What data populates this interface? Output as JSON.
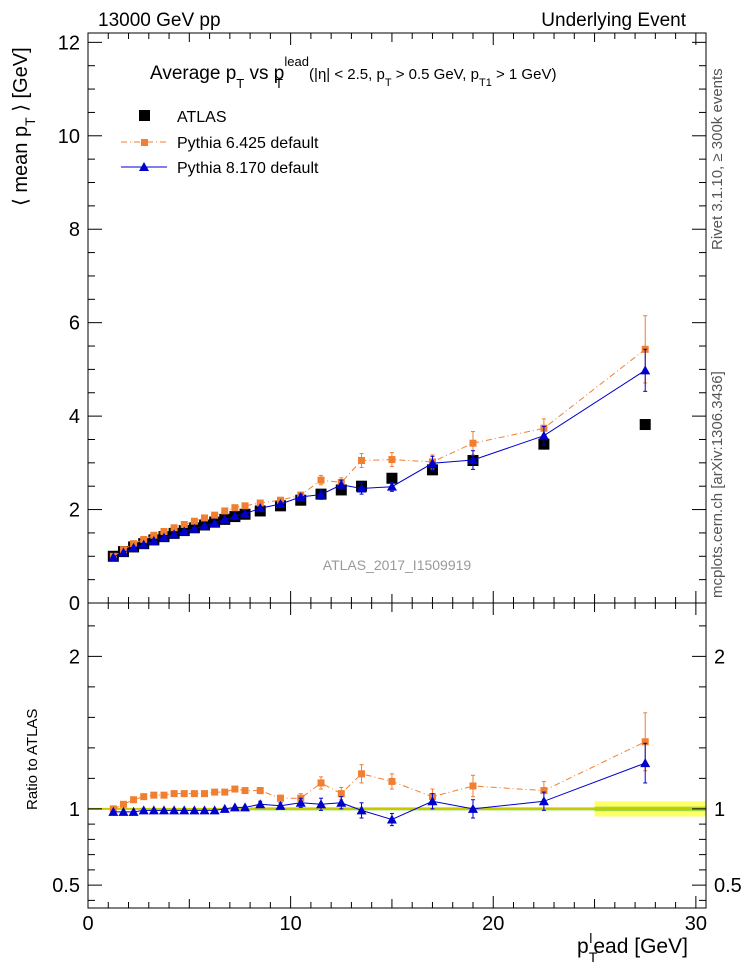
{
  "header": {
    "left": "13000 GeV pp",
    "right": "Underlying Event"
  },
  "side_labels": {
    "rivet": "Rivet 3.1.10, ≥ 300k events",
    "mcplots": "mcplots.cern.ch [arXiv:1306.3436]"
  },
  "watermark": "ATLAS_2017_I1509919",
  "colors": {
    "atlas": "#000000",
    "pythia6": "#f07f32",
    "pythia8": "#0000cc",
    "band_outer": "#ffff66",
    "band_inner": "#99dd44"
  },
  "chart_data": [
    {
      "type": "scatter",
      "title": "Average p_T vs p_T^lead (|η| < 2.5, p_T > 0.5 GeV, p_T1 > 1 GeV)",
      "title_parts": {
        "a": "Average p",
        "a_sub": "T",
        "b": " vs p",
        "b_sup": "lead",
        "b_sub": "T",
        "c": " (|η| < 2.5, p",
        "c_sub": "T",
        "d": " > 0.5 GeV, p",
        "d_sub": "T1",
        "e": " > 1 GeV)"
      },
      "ylabel": "⟨ mean p_T ⟩ [GeV]",
      "ylabel_parts": {
        "a": "⟨ mean p",
        "sub": "T",
        "b": " ⟩ [GeV]"
      },
      "xlim": [
        0,
        30.5
      ],
      "ylim": [
        0,
        12.2
      ],
      "yticks": [
        0,
        2,
        4,
        6,
        8,
        10,
        12
      ],
      "series": [
        {
          "name": "ATLAS",
          "marker": "square",
          "x": [
            1.25,
            1.75,
            2.25,
            2.75,
            3.25,
            3.75,
            4.25,
            4.75,
            5.25,
            5.75,
            6.25,
            6.75,
            7.25,
            7.75,
            8.5,
            9.5,
            10.5,
            11.5,
            12.5,
            13.5,
            15.0,
            17.0,
            19.0,
            22.5,
            27.5
          ],
          "y": [
            1.0,
            1.1,
            1.2,
            1.27,
            1.35,
            1.42,
            1.49,
            1.55,
            1.61,
            1.67,
            1.73,
            1.79,
            1.85,
            1.9,
            1.97,
            2.08,
            2.2,
            2.33,
            2.42,
            2.5,
            2.67,
            2.85,
            3.05,
            3.4,
            3.82
          ]
        },
        {
          "name": "Pythia 6.425 default",
          "marker": "square-small",
          "x": [
            1.25,
            1.75,
            2.25,
            2.75,
            3.25,
            3.75,
            4.25,
            4.75,
            5.25,
            5.75,
            6.25,
            6.75,
            7.25,
            7.75,
            8.5,
            9.5,
            10.5,
            11.5,
            12.5,
            13.5,
            15.0,
            17.0,
            19.0,
            22.5,
            27.5
          ],
          "y": [
            1.0,
            1.14,
            1.27,
            1.36,
            1.45,
            1.53,
            1.61,
            1.68,
            1.75,
            1.82,
            1.88,
            1.97,
            2.04,
            2.08,
            2.14,
            2.2,
            2.31,
            2.63,
            2.58,
            3.05,
            3.07,
            3.02,
            3.42,
            3.74,
            5.43
          ],
          "err": [
            0.01,
            0.01,
            0.01,
            0.01,
            0.01,
            0.01,
            0.01,
            0.01,
            0.01,
            0.01,
            0.01,
            0.02,
            0.02,
            0.02,
            0.03,
            0.04,
            0.06,
            0.1,
            0.1,
            0.15,
            0.15,
            0.15,
            0.25,
            0.2,
            0.72
          ]
        },
        {
          "name": "Pythia 8.170 default",
          "marker": "triangle",
          "x": [
            1.25,
            1.75,
            2.25,
            2.75,
            3.25,
            3.75,
            4.25,
            4.75,
            5.25,
            5.75,
            6.25,
            6.75,
            7.25,
            7.75,
            8.5,
            9.5,
            10.5,
            11.5,
            12.5,
            13.5,
            15.0,
            17.0,
            19.0,
            22.5,
            27.5
          ],
          "y": [
            0.98,
            1.08,
            1.18,
            1.25,
            1.33,
            1.4,
            1.47,
            1.53,
            1.59,
            1.65,
            1.71,
            1.79,
            1.86,
            1.91,
            2.03,
            2.12,
            2.27,
            2.32,
            2.53,
            2.45,
            2.49,
            2.99,
            3.06,
            3.58,
            4.98
          ],
          "err": [
            0.01,
            0.01,
            0.01,
            0.01,
            0.01,
            0.01,
            0.01,
            0.01,
            0.01,
            0.01,
            0.01,
            0.02,
            0.02,
            0.02,
            0.03,
            0.04,
            0.06,
            0.1,
            0.1,
            0.12,
            0.1,
            0.15,
            0.2,
            0.2,
            0.45
          ]
        }
      ]
    },
    {
      "type": "scatter",
      "ylabel": "Ratio to ATLAS",
      "xlabel": "p_T^lead [GeV]",
      "xlabel_parts": {
        "a": "p",
        "sub": "T",
        "sup": "l",
        "b": "ead [GeV]"
      },
      "xlim": [
        0,
        30.5
      ],
      "ylim": [
        0.35,
        2.35
      ],
      "xticks": [
        0,
        10,
        20,
        30
      ],
      "yticks": [
        0.5,
        1,
        2
      ],
      "series": [
        {
          "name": "Pythia 6.425 default",
          "x": [
            1.25,
            1.75,
            2.25,
            2.75,
            3.25,
            3.75,
            4.25,
            4.75,
            5.25,
            5.75,
            6.25,
            6.75,
            7.25,
            7.75,
            8.5,
            9.5,
            10.5,
            11.5,
            12.5,
            13.5,
            15.0,
            17.0,
            19.0,
            22.5,
            27.5
          ],
          "y": [
            1.0,
            1.03,
            1.06,
            1.08,
            1.09,
            1.09,
            1.1,
            1.1,
            1.1,
            1.1,
            1.11,
            1.11,
            1.13,
            1.12,
            1.12,
            1.07,
            1.07,
            1.17,
            1.1,
            1.23,
            1.18,
            1.08,
            1.15,
            1.12,
            1.44
          ],
          "err": [
            0.01,
            0.01,
            0.01,
            0.01,
            0.01,
            0.01,
            0.01,
            0.01,
            0.01,
            0.01,
            0.01,
            0.01,
            0.01,
            0.01,
            0.02,
            0.02,
            0.03,
            0.04,
            0.04,
            0.06,
            0.05,
            0.05,
            0.07,
            0.06,
            0.19
          ]
        },
        {
          "name": "Pythia 8.170 default",
          "x": [
            1.25,
            1.75,
            2.25,
            2.75,
            3.25,
            3.75,
            4.25,
            4.75,
            5.25,
            5.75,
            6.25,
            6.75,
            7.25,
            7.75,
            8.5,
            9.5,
            10.5,
            11.5,
            12.5,
            13.5,
            15.0,
            17.0,
            19.0,
            22.5,
            27.5
          ],
          "y": [
            0.98,
            0.98,
            0.98,
            0.99,
            0.99,
            0.99,
            0.99,
            0.99,
            0.99,
            0.99,
            0.99,
            1.0,
            1.01,
            1.01,
            1.03,
            1.02,
            1.04,
            1.03,
            1.04,
            0.99,
            0.93,
            1.05,
            1.0,
            1.05,
            1.3
          ],
          "err": [
            0.01,
            0.01,
            0.01,
            0.01,
            0.01,
            0.01,
            0.01,
            0.01,
            0.01,
            0.01,
            0.01,
            0.01,
            0.01,
            0.01,
            0.02,
            0.02,
            0.03,
            0.04,
            0.04,
            0.05,
            0.04,
            0.05,
            0.06,
            0.06,
            0.13
          ]
        }
      ]
    }
  ]
}
